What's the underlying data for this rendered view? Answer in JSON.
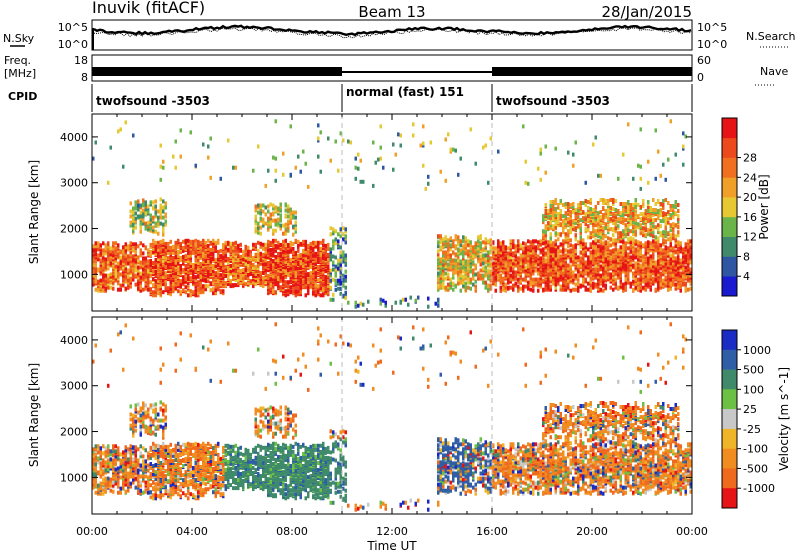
{
  "header": {
    "station": "Inuvik (fitACF)",
    "beam": "Beam 13",
    "date": "28/Jan/2015"
  },
  "noise_panel": {
    "left_label": "N.Sky",
    "right_label": "N.Search",
    "ticks": [
      "10^5",
      "10^0"
    ]
  },
  "freq_panel": {
    "left_label": "Freq.",
    "left_unit": "[MHz]",
    "left_ticks": [
      "18",
      "8"
    ],
    "right_label": "Nave",
    "right_ticks": [
      "60",
      "0"
    ]
  },
  "cpid_panel": {
    "label": "CPID",
    "segments": [
      {
        "name": "twofsound -3503",
        "start": 0,
        "end": 10
      },
      {
        "name": "normal (fast) 151",
        "start": 10,
        "end": 16
      },
      {
        "name": "twofsound -3503",
        "start": 16,
        "end": 24
      }
    ]
  },
  "time_axis": {
    "label": "Time UT",
    "ticks": [
      "00:00",
      "04:00",
      "08:00",
      "12:00",
      "16:00",
      "20:00",
      "00:00"
    ],
    "range_hours": [
      0,
      24
    ]
  },
  "power_colorbar": {
    "label": "Power [dB]",
    "ticks": [
      "4",
      "8",
      "12",
      "16",
      "20",
      "24",
      "28"
    ],
    "colors": [
      "#1a1ad0",
      "#2f56a3",
      "#3f8a6a",
      "#6ab44a",
      "#e6c832",
      "#f0a028",
      "#f07020",
      "#ec4a1c",
      "#e61414"
    ]
  },
  "velocity_colorbar": {
    "label": "Velocity [m s^-1]",
    "ticks": [
      "1000",
      "500",
      "100",
      "25",
      "-25",
      "-100",
      "-500",
      "-1000"
    ],
    "colors": [
      "#1a2cc4",
      "#2f5ea6",
      "#3f8a6a",
      "#6cc044",
      "#c8c8c8",
      "#f0b428",
      "#f08c20",
      "#f06a1e",
      "#e61414"
    ]
  },
  "chart_data": {
    "type": "heatmap",
    "title": "Inuvik (fitACF) Beam 13 28/Jan/2015",
    "xlabel": "Time UT",
    "ylabel": "Slant Range [km]",
    "xlim": [
      0,
      24
    ],
    "ylim": [
      200,
      4500
    ],
    "y_ticks": [
      1000,
      2000,
      3000,
      4000
    ],
    "scatter_regions": [
      {
        "start": 0.0,
        "end": 2.3,
        "low": 600,
        "high": 1650,
        "level": 0.75,
        "density": 0.55
      },
      {
        "start": 1.5,
        "end": 3.0,
        "low": 1800,
        "high": 2600,
        "level": 0.45,
        "density": 0.35
      },
      {
        "start": 2.3,
        "end": 5.3,
        "low": 500,
        "high": 1700,
        "level": 0.8,
        "density": 0.6
      },
      {
        "start": 5.3,
        "end": 7.0,
        "low": 700,
        "high": 1650,
        "level": 0.75,
        "density": 0.6
      },
      {
        "start": 6.5,
        "end": 8.2,
        "low": 1800,
        "high": 2500,
        "level": 0.5,
        "density": 0.3
      },
      {
        "start": 7.0,
        "end": 9.5,
        "low": 500,
        "high": 1700,
        "level": 0.85,
        "density": 0.7
      },
      {
        "start": 9.5,
        "end": 10.2,
        "low": 400,
        "high": 2000,
        "level": 0.3,
        "density": 0.3
      },
      {
        "start": 10.2,
        "end": 13.8,
        "low": 250,
        "high": 450,
        "level": 0.25,
        "density": 0.12
      },
      {
        "start": 13.8,
        "end": 16.0,
        "low": 600,
        "high": 1800,
        "level": 0.55,
        "density": 0.45
      },
      {
        "start": 16.0,
        "end": 24.0,
        "low": 600,
        "high": 1700,
        "level": 0.8,
        "density": 0.6
      },
      {
        "start": 18.0,
        "end": 23.5,
        "low": 1700,
        "high": 2600,
        "level": 0.6,
        "density": 0.4
      },
      {
        "start": 0.0,
        "end": 24.0,
        "low": 2800,
        "high": 4300,
        "level": 0.4,
        "density": 0.015
      }
    ]
  }
}
